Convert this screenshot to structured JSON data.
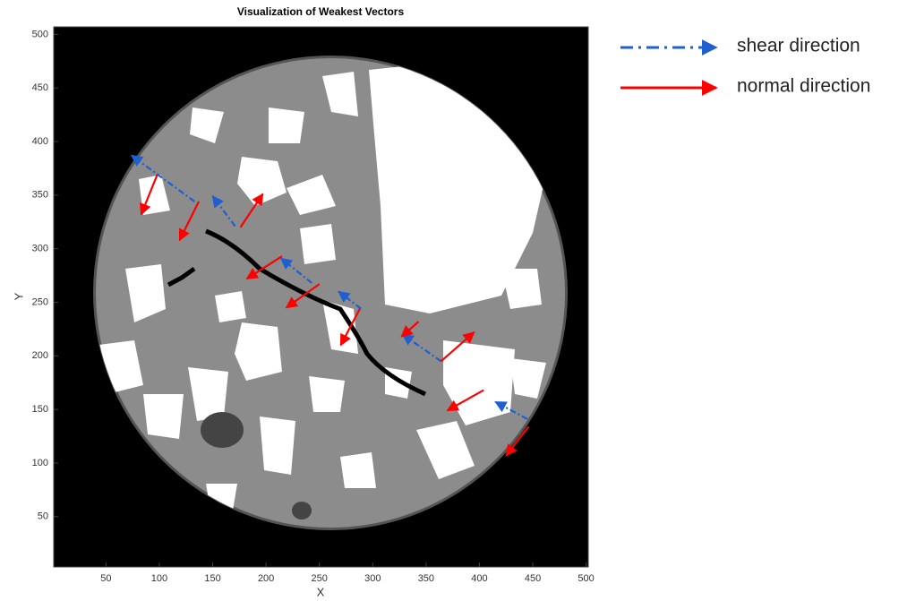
{
  "chart_data": {
    "type": "quiver",
    "title": "Visualization of Weakest Vectors",
    "x_label": "X",
    "y_label": "Y",
    "xlim": [
      1,
      502
    ],
    "ylim": [
      3,
      507
    ],
    "xticks": [
      50,
      100,
      150,
      200,
      250,
      300,
      350,
      400,
      450,
      500
    ],
    "yticks": [
      50,
      100,
      150,
      200,
      250,
      300,
      350,
      400,
      450,
      500
    ],
    "series": [
      {
        "name": "shear direction",
        "color": "#1f5fd0",
        "style": "dash-dot",
        "segments": [
          [
            133,
            344,
            74,
            387
          ],
          [
            171,
            321,
            150,
            349
          ],
          [
            243,
            268,
            214,
            291
          ],
          [
            289,
            244,
            268,
            260
          ],
          [
            364,
            195,
            328,
            220
          ],
          [
            445,
            141,
            415,
            157
          ]
        ]
      },
      {
        "name": "normal direction",
        "color": "#ff0000",
        "style": "solid",
        "segments": [
          [
            98,
            369,
            83,
            332
          ],
          [
            137,
            344,
            119,
            308
          ],
          [
            176,
            320,
            197,
            351
          ],
          [
            215,
            293,
            182,
            272
          ],
          [
            250,
            267,
            219,
            245
          ],
          [
            288,
            244,
            270,
            210
          ],
          [
            343,
            232,
            327,
            218
          ],
          [
            364,
            195,
            395,
            222
          ],
          [
            404,
            168,
            370,
            149
          ],
          [
            446,
            134,
            425,
            107
          ]
        ]
      }
    ]
  }
}
